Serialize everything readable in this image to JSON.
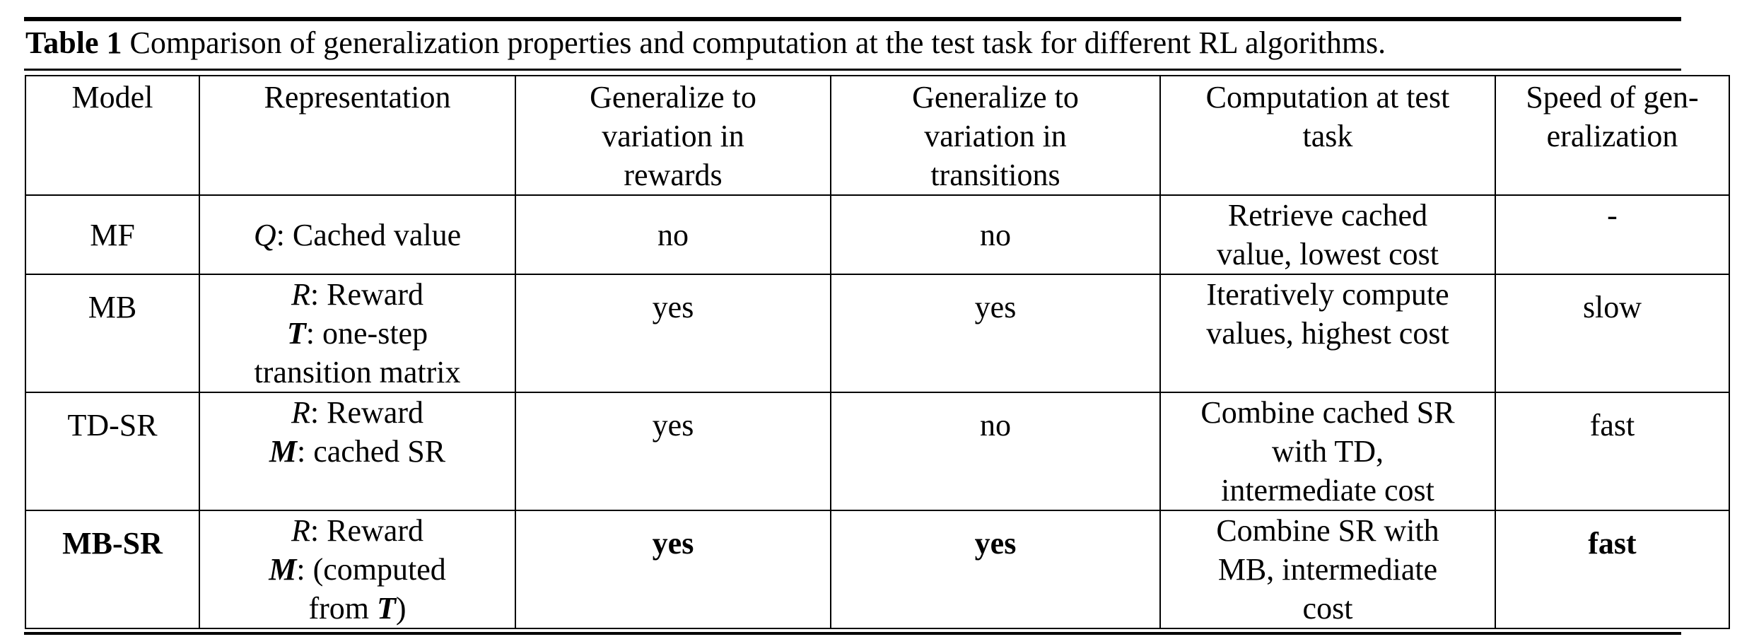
{
  "caption": {
    "label": "Table 1",
    "text": "Comparison of generalization properties and computation at the test task for different RL algorithms."
  },
  "headers": {
    "model": "Model",
    "representation": "Representation",
    "gen_rewards": [
      "Generalize to",
      "variation in",
      "rewards"
    ],
    "gen_transitions": [
      "Generalize to",
      "variation in",
      "transitions"
    ],
    "computation": [
      "Computation at test",
      "task"
    ],
    "speed": [
      "Speed of gen-",
      "eralization"
    ]
  },
  "rows": [
    {
      "model": "MF",
      "repr": [
        {
          "sym": "Q",
          "rest": ": Cached value"
        }
      ],
      "gen_rewards": "no",
      "gen_transitions": "no",
      "computation": [
        "Retrieve cached",
        "value, lowest cost"
      ],
      "speed": "-"
    },
    {
      "model": "MB",
      "repr": [
        {
          "sym": "R",
          "rest": ": Reward"
        },
        {
          "sym": "T",
          "rest": ": one-step"
        },
        {
          "text": "transition matrix"
        }
      ],
      "gen_rewards": "yes",
      "gen_transitions": "yes",
      "computation": [
        "Iteratively compute",
        "values, highest cost"
      ],
      "speed": "slow"
    },
    {
      "model": "TD-SR",
      "repr": [
        {
          "sym": "R",
          "rest": ": Reward"
        },
        {
          "sym": "M",
          "rest": ": cached SR"
        }
      ],
      "gen_rewards": "yes",
      "gen_transitions": "no",
      "computation": [
        "Combine cached SR",
        "with TD,",
        "intermediate cost"
      ],
      "speed": "fast"
    },
    {
      "model": "MB-SR",
      "repr": [
        {
          "sym": "R",
          "rest": ": Reward"
        },
        {
          "sym": "M",
          "rest": ": (computed"
        },
        {
          "text": "from ",
          "sym": "T",
          "rest": ")"
        }
      ],
      "gen_rewards": "yes",
      "gen_transitions": "yes",
      "computation": [
        "Combine SR with",
        "MB, intermediate",
        "cost"
      ],
      "speed": "fast"
    }
  ]
}
